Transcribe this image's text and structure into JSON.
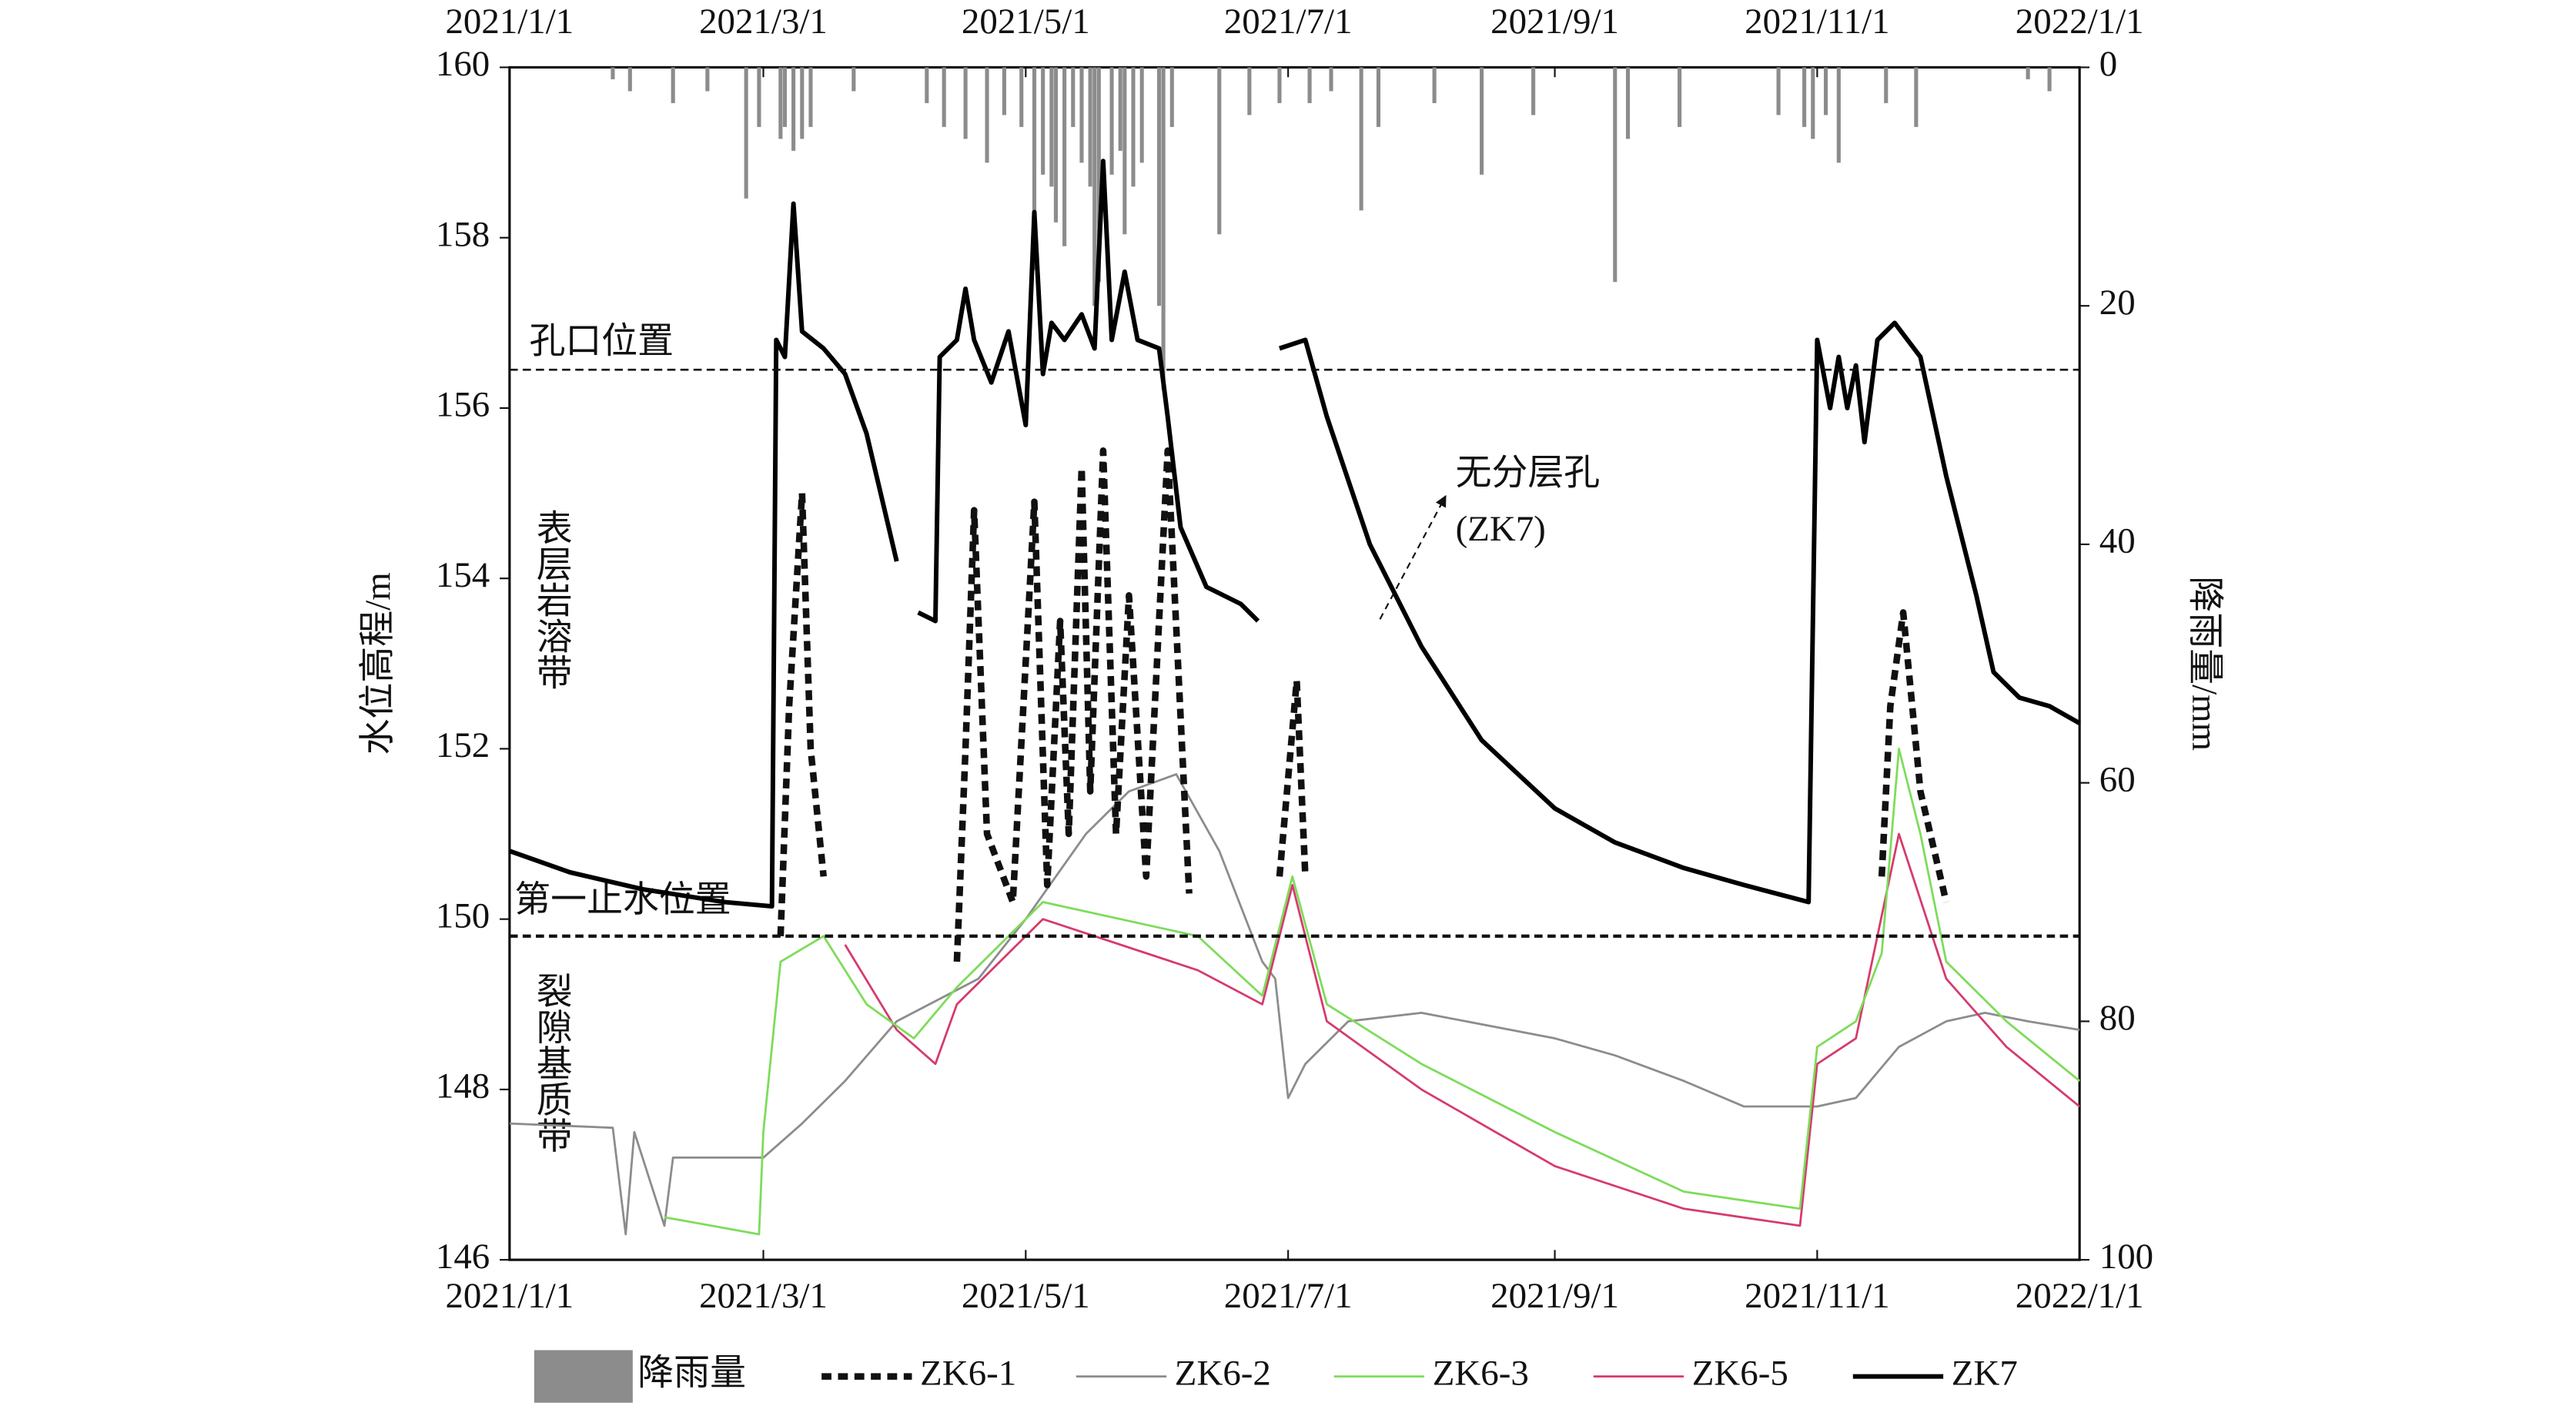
{
  "chart_data": {
    "type": "line",
    "y_label": "水位高程/m",
    "y2_label": "降雨量/mm",
    "xlim": [
      "2021-01-01",
      "2022-01-01"
    ],
    "xticks": [
      {
        "value": "2021-01-01",
        "label": "2021/1/1"
      },
      {
        "value": "2021-03-01",
        "label": "2021/3/1"
      },
      {
        "value": "2021-05-01",
        "label": "2021/5/1"
      },
      {
        "value": "2021-07-01",
        "label": "2021/7/1"
      },
      {
        "value": "2021-09-01",
        "label": "2021/9/1"
      },
      {
        "value": "2021-11-01",
        "label": "2021/11/1"
      },
      {
        "value": "2022-01-01",
        "label": "2022/1/1"
      }
    ],
    "ylim": [
      146,
      160
    ],
    "yticks": [
      146,
      148,
      150,
      152,
      154,
      156,
      158,
      160
    ],
    "y2lim": [
      0,
      100
    ],
    "y2ticks": [
      0,
      20,
      40,
      60,
      80,
      100
    ],
    "y2_inverted": true,
    "reference_lines": [
      {
        "value": 156.45,
        "label": "孔口位置"
      },
      {
        "value": 149.8,
        "label": "第一止水位置"
      }
    ],
    "zone_labels": [
      "表层岩溶带",
      "裂隙基质带"
    ],
    "annotation": [
      "无分层孔",
      "(ZK7)"
    ],
    "series": [
      {
        "name": "降雨量",
        "type": "bar",
        "axis": "y2",
        "color": "#8c8c8c",
        "x": [
          "2021-01-25",
          "2021-01-29",
          "2021-02-08",
          "2021-02-16",
          "2021-02-25",
          "2021-02-28",
          "2021-03-05",
          "2021-03-06",
          "2021-03-08",
          "2021-03-10",
          "2021-03-12",
          "2021-03-22",
          "2021-04-08",
          "2021-04-12",
          "2021-04-17",
          "2021-04-22",
          "2021-04-26",
          "2021-04-30",
          "2021-05-03",
          "2021-05-05",
          "2021-05-07",
          "2021-05-08",
          "2021-05-10",
          "2021-05-12",
          "2021-05-14",
          "2021-05-16",
          "2021-05-17",
          "2021-05-18",
          "2021-05-21",
          "2021-05-23",
          "2021-05-24",
          "2021-05-26",
          "2021-05-28",
          "2021-06-01",
          "2021-06-02",
          "2021-06-04",
          "2021-06-15",
          "2021-06-22",
          "2021-06-29",
          "2021-07-06",
          "2021-07-11",
          "2021-07-18",
          "2021-07-22",
          "2021-08-04",
          "2021-08-15",
          "2021-08-27",
          "2021-09-15",
          "2021-09-18",
          "2021-09-30",
          "2021-10-23",
          "2021-10-29",
          "2021-10-31",
          "2021-11-03",
          "2021-11-06",
          "2021-11-17",
          "2021-11-24",
          "2021-12-20",
          "2021-12-25"
        ],
        "values": [
          1,
          2,
          3,
          2,
          11,
          5,
          6,
          5,
          7,
          6,
          5,
          2,
          3,
          5,
          6,
          8,
          4,
          5,
          17,
          9,
          10,
          13,
          15,
          5,
          8,
          10,
          20,
          18,
          9,
          7,
          14,
          10,
          8,
          20,
          27,
          5,
          14,
          4,
          3,
          3,
          2,
          12,
          5,
          3,
          9,
          4,
          18,
          6,
          5,
          4,
          5,
          6,
          4,
          8,
          3,
          5,
          1,
          2
        ]
      },
      {
        "name": "ZK6-1",
        "color": "#111111",
        "line_style": "dashed",
        "x": [
          "2021-03-05",
          "2021-03-07",
          "2021-03-10",
          "2021-03-12",
          "2021-03-15",
          "2021-03-17",
          "2021-04-15",
          "2021-04-17",
          "2021-04-19",
          "2021-04-22",
          "2021-04-28",
          "2021-05-03",
          "2021-05-06",
          "2021-05-09",
          "2021-05-11",
          "2021-05-14",
          "2021-05-16",
          "2021-05-19",
          "2021-05-22",
          "2021-05-25",
          "2021-05-29",
          "2021-06-03",
          "2021-06-08",
          "2021-06-10",
          "2021-06-29",
          "2021-07-03",
          "2021-07-05",
          "2021-07-07",
          "2021-11-16",
          "2021-11-18",
          "2021-11-21",
          "2021-11-25",
          "2021-12-01"
        ],
        "values": [
          149.8,
          152.5,
          155.0,
          152.0,
          150.5,
          null,
          149.5,
          152.0,
          154.8,
          151.0,
          150.2,
          154.9,
          150.4,
          153.5,
          151.0,
          155.3,
          151.5,
          155.5,
          151.0,
          153.8,
          150.5,
          155.5,
          150.3,
          null,
          150.5,
          152.8,
          150.5,
          null,
          150.5,
          152.5,
          153.6,
          151.5,
          150.2
        ]
      },
      {
        "name": "ZK6-2",
        "color": "#8c8c8c",
        "line_style": "solid",
        "x": [
          "2021-01-01",
          "2021-01-25",
          "2021-01-28",
          "2021-01-30",
          "2021-02-06",
          "2021-02-08",
          "2021-03-01",
          "2021-03-10",
          "2021-03-20",
          "2021-04-01",
          "2021-04-20",
          "2021-05-01",
          "2021-05-15",
          "2021-05-25",
          "2021-06-05",
          "2021-06-15",
          "2021-06-25",
          "2021-06-28",
          "2021-07-01",
          "2021-07-05",
          "2021-07-15",
          "2021-08-01",
          "2021-09-01",
          "2021-09-15",
          "2021-10-01",
          "2021-10-15",
          "2021-11-01",
          "2021-11-10",
          "2021-11-20",
          "2021-12-01",
          "2021-12-10",
          "2021-12-20",
          "2022-01-01"
        ],
        "values": [
          147.6,
          147.55,
          146.3,
          147.5,
          146.4,
          147.2,
          147.2,
          147.6,
          148.1,
          148.8,
          149.3,
          150.0,
          151.0,
          151.5,
          151.7,
          150.8,
          149.5,
          149.3,
          147.9,
          148.3,
          148.8,
          148.9,
          148.6,
          148.4,
          148.1,
          147.8,
          147.8,
          147.9,
          148.5,
          148.8,
          148.9,
          148.8,
          148.7
        ]
      },
      {
        "name": "ZK6-3",
        "color": "#7ddc5a",
        "line_style": "solid",
        "x": [
          "2021-02-06",
          "2021-02-28",
          "2021-03-01",
          "2021-03-05",
          "2021-03-15",
          "2021-03-25",
          "2021-04-05",
          "2021-04-15",
          "2021-05-05",
          "2021-06-10",
          "2021-06-25",
          "2021-07-02",
          "2021-07-10",
          "2021-08-01",
          "2021-09-01",
          "2021-10-01",
          "2021-10-28",
          "2021-11-01",
          "2021-11-10",
          "2021-11-16",
          "2021-11-20",
          "2021-11-25",
          "2021-12-01",
          "2021-12-15",
          "2022-01-01"
        ],
        "values": [
          146.5,
          146.3,
          147.5,
          149.5,
          149.8,
          149.0,
          148.6,
          149.2,
          150.2,
          149.8,
          149.1,
          150.5,
          149.0,
          148.3,
          147.5,
          146.8,
          146.6,
          148.5,
          148.8,
          149.6,
          152.0,
          151.0,
          149.5,
          148.8,
          148.1
        ]
      },
      {
        "name": "ZK6-5",
        "color": "#d63a6e",
        "line_style": "solid",
        "x": [
          "2021-03-20",
          "2021-04-01",
          "2021-04-10",
          "2021-04-15",
          "2021-05-05",
          "2021-06-10",
          "2021-06-25",
          "2021-07-02",
          "2021-07-10",
          "2021-08-01",
          "2021-09-01",
          "2021-10-01",
          "2021-10-28",
          "2021-11-01",
          "2021-11-10",
          "2021-11-20",
          "2021-12-01",
          "2021-12-15",
          "2022-01-01"
        ],
        "values": [
          149.7,
          148.7,
          148.3,
          149.0,
          150.0,
          149.4,
          149.0,
          150.4,
          148.8,
          148.0,
          147.1,
          146.6,
          146.4,
          148.3,
          148.6,
          151.0,
          149.3,
          148.5,
          147.8
        ]
      },
      {
        "name": "ZK7",
        "color": "#000000",
        "line_style": "solid",
        "x": [
          "2021-01-01",
          "2021-01-15",
          "2021-02-01",
          "2021-02-20",
          "2021-03-03",
          "2021-03-04",
          "2021-03-06",
          "2021-03-08",
          "2021-03-10",
          "2021-03-15",
          "2021-03-20",
          "2021-03-25",
          "2021-04-01",
          "2021-04-04",
          "2021-04-06",
          "2021-04-10",
          "2021-04-11",
          "2021-04-15",
          "2021-04-17",
          "2021-04-19",
          "2021-04-23",
          "2021-04-27",
          "2021-05-01",
          "2021-05-03",
          "2021-05-05",
          "2021-05-07",
          "2021-05-10",
          "2021-05-14",
          "2021-05-17",
          "2021-05-19",
          "2021-05-21",
          "2021-05-24",
          "2021-05-27",
          "2021-06-01",
          "2021-06-03",
          "2021-06-06",
          "2021-06-12",
          "2021-06-20",
          "2021-06-24",
          "2021-06-26",
          "2021-06-29",
          "2021-07-05",
          "2021-07-10",
          "2021-07-20",
          "2021-08-01",
          "2021-08-15",
          "2021-09-01",
          "2021-09-15",
          "2021-10-01",
          "2021-10-15",
          "2021-10-30",
          "2021-11-01",
          "2021-11-04",
          "2021-11-06",
          "2021-11-08",
          "2021-11-10",
          "2021-11-12",
          "2021-11-15",
          "2021-11-19",
          "2021-11-25",
          "2021-12-01",
          "2021-12-08",
          "2021-12-12",
          "2021-12-18",
          "2021-12-25",
          "2022-01-01"
        ],
        "values": [
          150.8,
          150.55,
          150.35,
          150.2,
          150.15,
          156.8,
          156.6,
          158.4,
          156.9,
          156.7,
          156.4,
          155.7,
          154.2,
          null,
          153.6,
          153.5,
          156.6,
          156.8,
          157.4,
          156.8,
          156.3,
          156.9,
          155.8,
          158.3,
          156.4,
          157.0,
          156.8,
          157.1,
          156.7,
          158.9,
          156.8,
          157.6,
          156.8,
          156.7,
          155.9,
          154.6,
          153.9,
          153.7,
          153.5,
          null,
          156.7,
          156.8,
          155.9,
          154.4,
          153.2,
          152.1,
          151.3,
          150.9,
          150.6,
          150.4,
          150.2,
          156.8,
          156.0,
          156.6,
          156.0,
          156.5,
          155.6,
          156.8,
          157.0,
          156.6,
          155.2,
          153.8,
          152.9,
          152.6,
          152.5,
          152.3
        ]
      }
    ]
  }
}
